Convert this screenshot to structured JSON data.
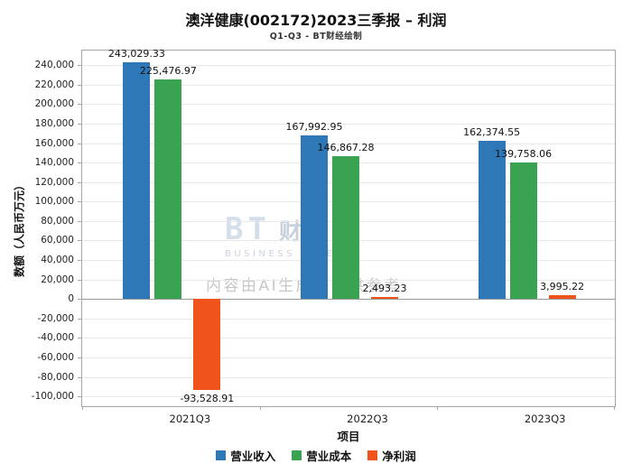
{
  "header": {
    "title": "澳洋健康(002172)2023三季报 – 利润",
    "subtitle": "Q1-Q3 - BT财经绘制"
  },
  "chart_data": {
    "type": "bar",
    "title": "澳洋健康(002172)2023三季报 – 利润",
    "subtitle": "Q1-Q3 - BT财经绘制",
    "categories": [
      "2021Q3",
      "2022Q3",
      "2023Q3"
    ],
    "series": [
      {
        "key": "revenue",
        "name": "营业收入",
        "color": "#2e78b8",
        "values": [
          243029.33,
          167992.95,
          162374.55
        ]
      },
      {
        "key": "cost",
        "name": "营业成本",
        "color": "#3aa351",
        "values": [
          225476.97,
          146867.28,
          139758.06
        ]
      },
      {
        "key": "net-profit",
        "name": "净利润",
        "color": "#f0531c",
        "values": [
          -93528.91,
          2493.23,
          3995.22
        ]
      }
    ],
    "xlabel": "项目",
    "ylabel": "数额（人民币万元）",
    "ylim": [
      -100000,
      240000
    ],
    "ytick_step": 20000,
    "grid": true,
    "legend_position": "bottom"
  },
  "watermark": {
    "brand": "BT",
    "brand_cn": "财经",
    "brand_sub": "BUSINESS TIMES",
    "ai_note": "内容由AI生成，仅供参考"
  }
}
